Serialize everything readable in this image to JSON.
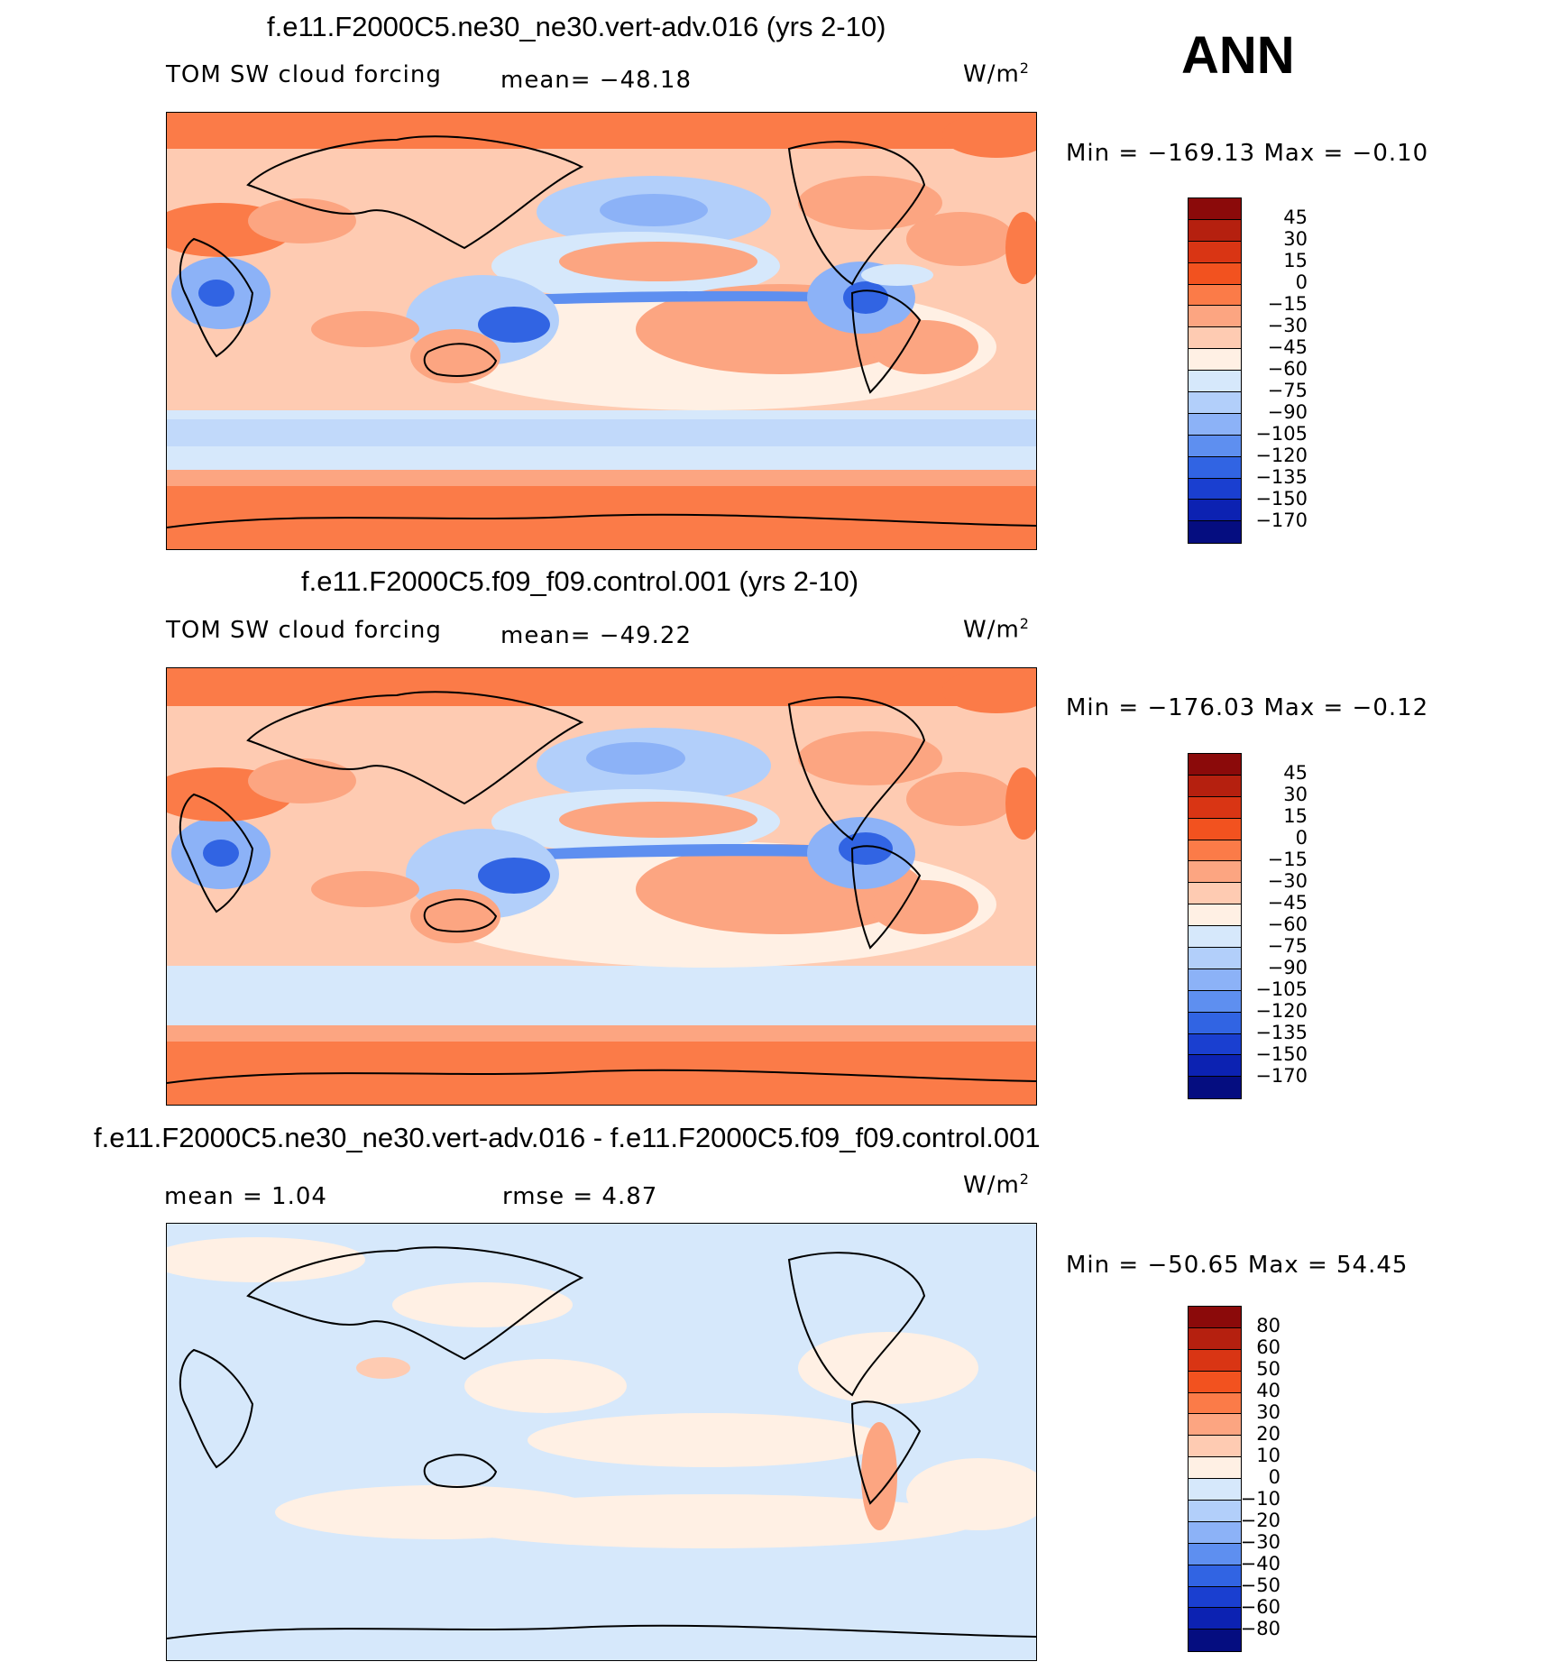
{
  "season": "ANN",
  "units": "W/m",
  "units_exp": "2",
  "panels": [
    {
      "title": "f.e11.F2000C5.ne30_ne30.vert-adv.016 (yrs 2-10)",
      "var_label": "TOM SW cloud forcing",
      "stat1": "mean=  −48.18",
      "stat2": "",
      "minmax": "Min  =  −169.13  Max  =    −0.10",
      "legend_levels": [
        "45",
        "30",
        "15",
        "0",
        "−15",
        "−30",
        "−45",
        "−60",
        "−75",
        "−90",
        "−105",
        "−120",
        "−135",
        "−150",
        "−170"
      ],
      "legend_colors": [
        "#8b0a0a",
        "#b5200f",
        "#d93514",
        "#f2521f",
        "#fb7b48",
        "#fca581",
        "#fecbb2",
        "#fff0e4",
        "#d6e8fb",
        "#b2cffa",
        "#8cb2f7",
        "#5e8ff0",
        "#3164e3",
        "#1a3fd0",
        "#0c22b2",
        "#050d80"
      ],
      "map_data": {
        "field": "TOM SW cloud forcing",
        "min": -169.13,
        "max": -0.1,
        "mean": -48.18
      }
    },
    {
      "title": "f.e11.F2000C5.f09_f09.control.001 (yrs 2-10)",
      "var_label": "TOM SW cloud forcing",
      "stat1": "mean=  −49.22",
      "stat2": "",
      "minmax": "Min  =  −176.03  Max  =    −0.12",
      "legend_levels": [
        "45",
        "30",
        "15",
        "0",
        "−15",
        "−30",
        "−45",
        "−60",
        "−75",
        "−90",
        "−105",
        "−120",
        "−135",
        "−150",
        "−170"
      ],
      "legend_colors": [
        "#8b0a0a",
        "#b5200f",
        "#d93514",
        "#f2521f",
        "#fb7b48",
        "#fca581",
        "#fecbb2",
        "#fff0e4",
        "#d6e8fb",
        "#b2cffa",
        "#8cb2f7",
        "#5e8ff0",
        "#3164e3",
        "#1a3fd0",
        "#0c22b2",
        "#050d80"
      ],
      "map_data": {
        "field": "TOM SW cloud forcing",
        "min": -176.03,
        "max": -0.12,
        "mean": -49.22
      }
    },
    {
      "title": "f.e11.F2000C5.ne30_ne30.vert-adv.016 - f.e11.F2000C5.f09_f09.control.001",
      "var_label": "mean  =     1.04",
      "stat1": "rmse  =     4.87",
      "stat2": "",
      "minmax": "Min  =  −50.65  Max  =    54.45",
      "legend_levels": [
        "80",
        "60",
        "50",
        "40",
        "30",
        "20",
        "10",
        "0",
        "−10",
        "−20",
        "−30",
        "−40",
        "−50",
        "−60",
        "−80"
      ],
      "legend_colors": [
        "#8b0a0a",
        "#b5200f",
        "#d93514",
        "#f2521f",
        "#fb7b48",
        "#fca581",
        "#fecbb2",
        "#fff0e4",
        "#d6e8fb",
        "#b2cffa",
        "#8cb2f7",
        "#5e8ff0",
        "#3164e3",
        "#1a3fd0",
        "#0c22b2",
        "#050d80"
      ],
      "map_data": {
        "field": "difference",
        "min": -50.65,
        "max": 54.45,
        "mean": 1.04,
        "rmse": 4.87
      }
    }
  ]
}
